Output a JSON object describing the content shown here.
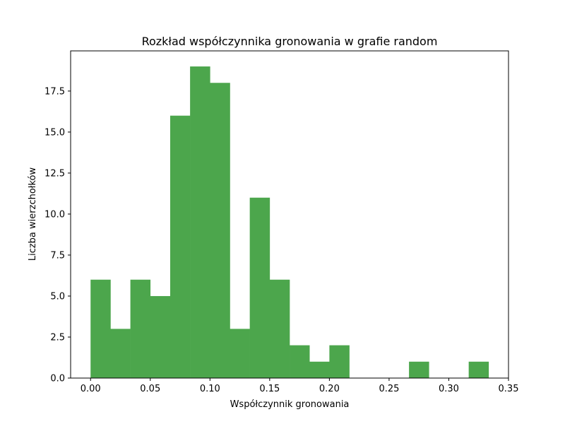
{
  "chart_data": {
    "type": "bar",
    "title": "Rozkład współczynnika gronowania w grafie random",
    "xlabel": "Współczynnik gronowania",
    "ylabel": "Liczba wierzchołków",
    "bar_color": "#4ca64c",
    "xlim": [
      -0.0167,
      0.35
    ],
    "ylim": [
      0,
      19.95
    ],
    "xticks": [
      0.0,
      0.05,
      0.1,
      0.15,
      0.2,
      0.25,
      0.3,
      0.35
    ],
    "xtick_labels": [
      "0.00",
      "0.05",
      "0.10",
      "0.15",
      "0.20",
      "0.25",
      "0.30",
      "0.35"
    ],
    "yticks": [
      0.0,
      2.5,
      5.0,
      7.5,
      10.0,
      12.5,
      15.0,
      17.5
    ],
    "ytick_labels": [
      "0.0",
      "2.5",
      "5.0",
      "7.5",
      "10.0",
      "12.5",
      "15.0",
      "17.5"
    ],
    "bin_edges": [
      0.0,
      0.01667,
      0.03333,
      0.05,
      0.06667,
      0.08333,
      0.1,
      0.11667,
      0.13333,
      0.15,
      0.16667,
      0.18333,
      0.2,
      0.21667,
      0.23333,
      0.25,
      0.26667,
      0.28333,
      0.3,
      0.31667,
      0.33333
    ],
    "counts": [
      6,
      3,
      6,
      5,
      16,
      19,
      18,
      3,
      11,
      6,
      2,
      1,
      2,
      0,
      0,
      0,
      1,
      0,
      0,
      1
    ],
    "grid": false,
    "legend": false
  }
}
